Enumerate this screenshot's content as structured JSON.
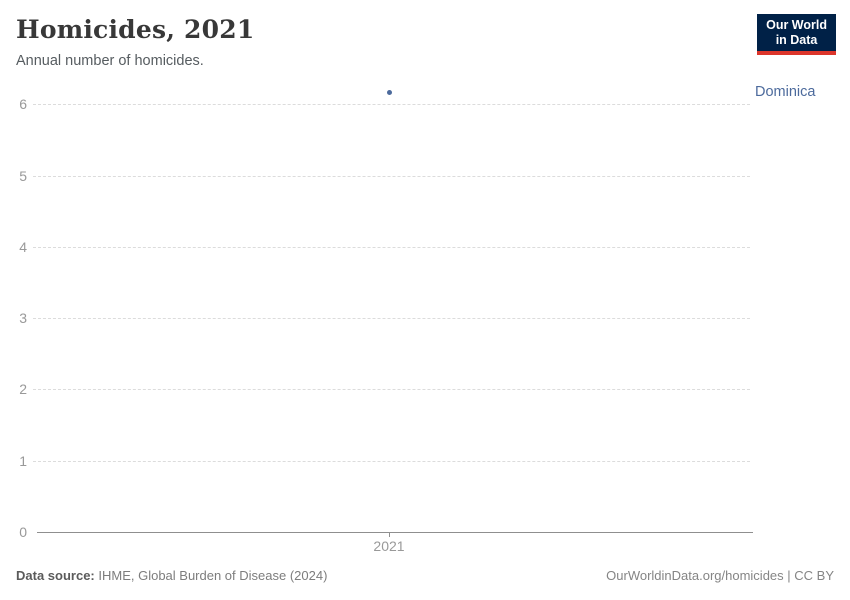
{
  "header": {
    "title": "Homicides, 2021",
    "subtitle": "Annual number of homicides."
  },
  "logo": {
    "line1": "Our World",
    "line2": "in Data"
  },
  "chart_data": {
    "type": "scatter",
    "title": "Homicides, 2021",
    "subtitle": "Annual number of homicides.",
    "x": [
      2021
    ],
    "xticks": [
      2021
    ],
    "yticks": [
      0,
      1,
      2,
      3,
      4,
      5,
      6
    ],
    "ylim": [
      0,
      6.3
    ],
    "series": [
      {
        "name": "Dominica",
        "values": [
          6.17
        ]
      }
    ],
    "xlabel": "",
    "ylabel": "",
    "grid": "horizontal-dashed",
    "legend_position": "label-right-of-point"
  },
  "footer": {
    "source_label": "Data source:",
    "source_value": " IHME, Global Burden of Disease (2024)",
    "link_text": "OurWorldinData.org/homicides | CC BY"
  },
  "colors": {
    "series": "#4C6A9C",
    "grid": "#dcdcdc",
    "axis": "#8f8f8f",
    "tick_label": "#999999",
    "title": "#383838",
    "subtitle": "#565c60",
    "footer_label": "#5b5b5b",
    "footer_text": "#7d7d7d",
    "footer_link": "#858585",
    "logo_bg": "#002147",
    "logo_accent": "#dc352b"
  }
}
